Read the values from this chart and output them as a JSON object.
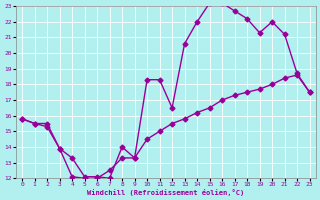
{
  "xlabel": "Windchill (Refroidissement éolien,°C)",
  "line_color": "#990099",
  "bg_color": "#b2f0f0",
  "grid_color": "#ffffff",
  "xlim": [
    -0.5,
    23.5
  ],
  "ylim": [
    12,
    23
  ],
  "xticks": [
    0,
    1,
    2,
    3,
    4,
    5,
    6,
    7,
    8,
    9,
    10,
    11,
    12,
    13,
    14,
    15,
    16,
    17,
    18,
    19,
    20,
    21,
    22,
    23
  ],
  "yticks": [
    12,
    13,
    14,
    15,
    16,
    17,
    18,
    19,
    20,
    21,
    22,
    23
  ],
  "upper_x": [
    0,
    1,
    2,
    3,
    4,
    5,
    6,
    7,
    8,
    9,
    10,
    11,
    12,
    13,
    14,
    15,
    16,
    17,
    18,
    19,
    20,
    21,
    22,
    23
  ],
  "upper_y": [
    15.8,
    15.5,
    15.5,
    13.9,
    13.3,
    12.1,
    12.1,
    12.0,
    14.0,
    13.3,
    18.3,
    18.3,
    16.5,
    20.6,
    22.0,
    23.2,
    23.2,
    22.7,
    22.2,
    21.3,
    22.0,
    21.2,
    18.7,
    17.5
  ],
  "lower_x": [
    0,
    1,
    2,
    3,
    4,
    5,
    6,
    7,
    8,
    9,
    10,
    11,
    12,
    13,
    14,
    15,
    16,
    17,
    18,
    19,
    20,
    21,
    22,
    23
  ],
  "lower_y": [
    15.8,
    15.5,
    15.3,
    13.9,
    12.1,
    12.0,
    12.0,
    12.5,
    13.3,
    13.3,
    14.5,
    15.0,
    15.5,
    15.8,
    16.2,
    16.5,
    17.0,
    17.3,
    17.5,
    17.7,
    18.0,
    18.4,
    18.6,
    17.5
  ],
  "marker": "D",
  "markersize": 2.5,
  "linewidth": 1.0
}
